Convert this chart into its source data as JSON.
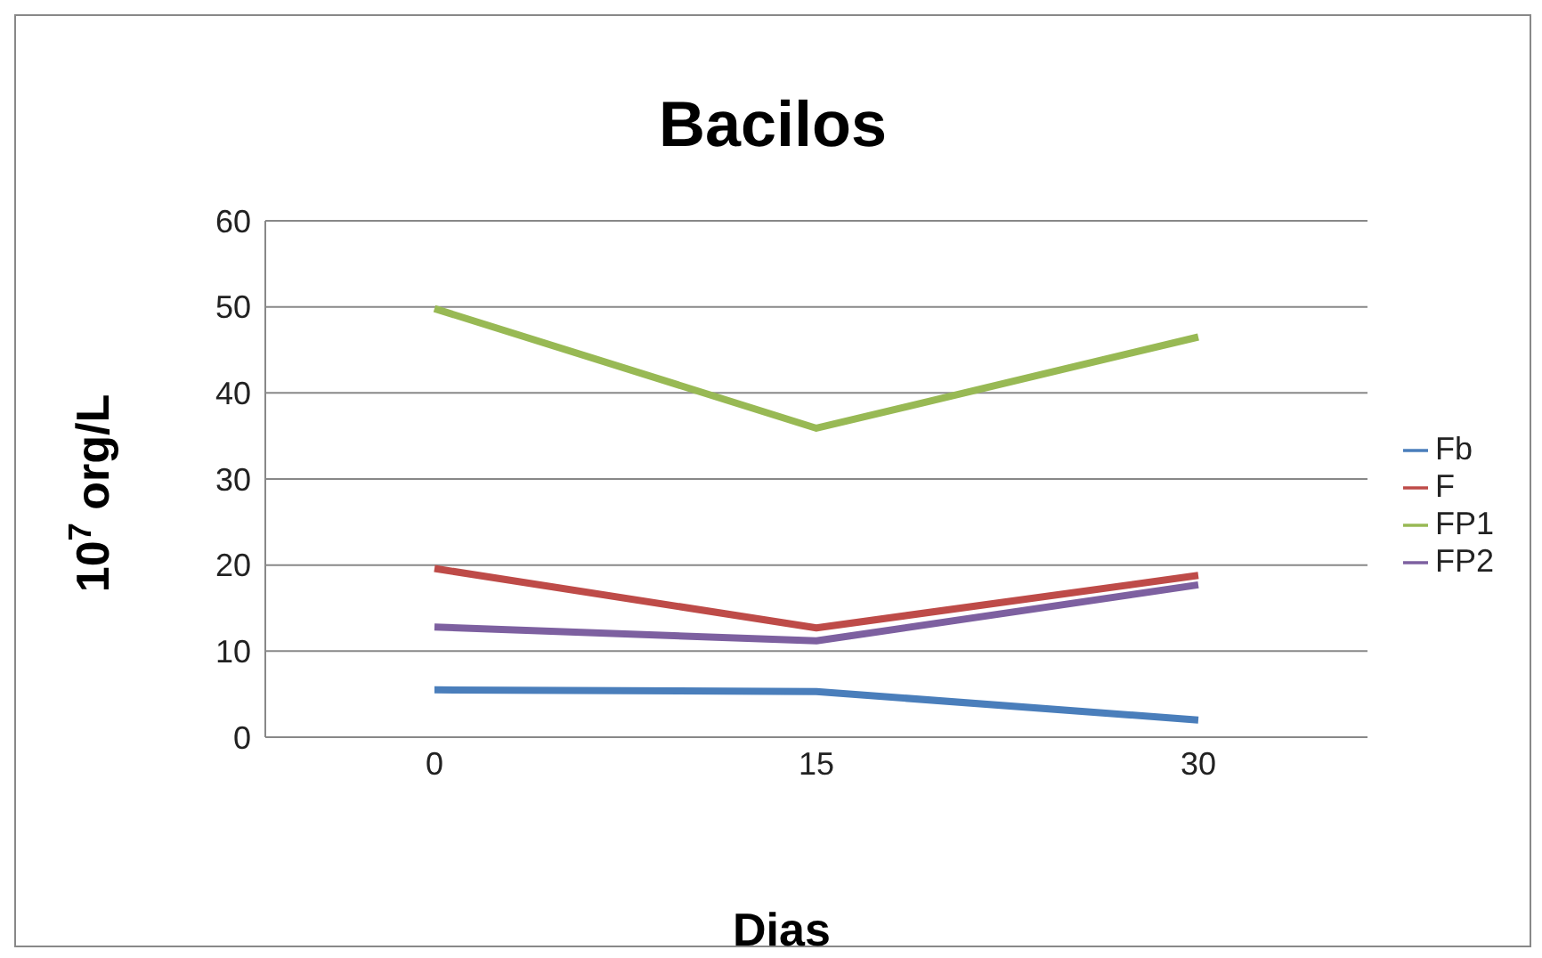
{
  "chart_data": {
    "type": "line",
    "title": "Bacilos",
    "xlabel": "Dias",
    "ylabel": "10$^{7}$ org/L",
    "categories": [
      "0",
      "15",
      "30"
    ],
    "series": [
      {
        "name": "Fb",
        "color": "#4a7ebb",
        "values": [
          5.5,
          5.3,
          2.0
        ]
      },
      {
        "name": "F",
        "color": "#be4b48",
        "values": [
          19.6,
          12.7,
          18.8
        ]
      },
      {
        "name": "FP1",
        "color": "#98b954",
        "values": [
          49.8,
          35.9,
          46.5
        ]
      },
      {
        "name": "FP2",
        "color": "#7d60a0",
        "values": [
          12.8,
          11.2,
          17.7
        ]
      }
    ],
    "ylim": [
      0,
      60
    ],
    "yticks": [
      0,
      10,
      20,
      30,
      40,
      50,
      60
    ],
    "grid": "y",
    "legend": "right",
    "marker": "none",
    "line_style": "solid"
  }
}
